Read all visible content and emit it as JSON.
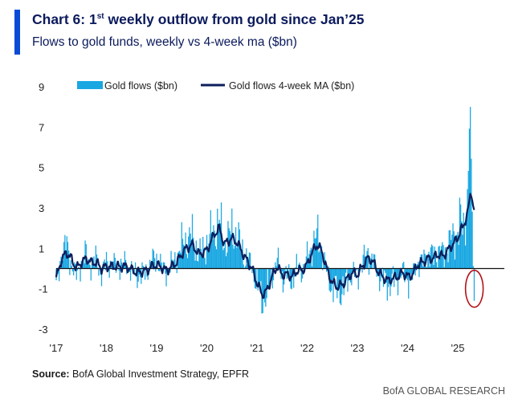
{
  "header": {
    "title_main": "Chart 6: 1",
    "title_sup": "st",
    "title_rest": " weekly outflow from gold since Jan’25",
    "subtitle": "Flows to gold funds, weekly vs 4-week ma ($bn)"
  },
  "footer": {
    "source_label": "Source:",
    "source_text": " BofA Global Investment Strategy, EPFR",
    "brand": "BofA GLOBAL RESEARCH"
  },
  "colors": {
    "bars": "#1aa7e2",
    "ma_line": "#0b1f5c",
    "zero_line": "#111111",
    "highlight": "#b3141a",
    "accent": "#0a4bd6"
  },
  "chart_data": {
    "type": "bar",
    "title": "Chart 6: 1st weekly outflow from gold since Jan’25",
    "subtitle": "Flows to gold funds, weekly vs 4-week ma ($bn)",
    "ylim": [
      -3,
      9
    ],
    "yticks": [
      -3,
      -1,
      1,
      3,
      5,
      7,
      9
    ],
    "xticks": [
      "'17",
      "'18",
      "'19",
      "'20",
      "'21",
      "'22",
      "'23",
      "'24",
      "'25"
    ],
    "xtick_positions_year": [
      2017,
      2018,
      2019,
      2020,
      2021,
      2022,
      2023,
      2024,
      2025
    ],
    "x_start_year": 2017.0,
    "x_end_year": 2025.32,
    "legend": [
      "Gold flows ($bn)",
      "Gold flows 4-week MA ($bn)"
    ],
    "legend_position": "top",
    "annotation": "red ellipse highlighting latest weekly outflow",
    "series": [
      {
        "name": "Gold flows ($bn)",
        "kind": "bar",
        "anchors": [
          [
            2017.0,
            -1.8
          ],
          [
            2017.1,
            1.0
          ],
          [
            2017.2,
            1.5
          ],
          [
            2017.3,
            0.4
          ],
          [
            2017.4,
            -0.6
          ],
          [
            2017.5,
            0.5
          ],
          [
            2017.6,
            0.9
          ],
          [
            2017.7,
            0.2
          ],
          [
            2017.8,
            0.6
          ],
          [
            2017.9,
            -0.4
          ],
          [
            2018.0,
            0.4
          ],
          [
            2018.2,
            0.2
          ],
          [
            2018.4,
            0.3
          ],
          [
            2018.6,
            -0.5
          ],
          [
            2018.8,
            -0.3
          ],
          [
            2018.9,
            0.5
          ],
          [
            2019.0,
            0.6
          ],
          [
            2019.2,
            -0.3
          ],
          [
            2019.4,
            0.8
          ],
          [
            2019.55,
            1.8
          ],
          [
            2019.7,
            2.1
          ],
          [
            2019.85,
            0.9
          ],
          [
            2020.0,
            1.6
          ],
          [
            2020.15,
            2.6
          ],
          [
            2020.25,
            3.0
          ],
          [
            2020.35,
            1.6
          ],
          [
            2020.5,
            2.4
          ],
          [
            2020.6,
            2.2
          ],
          [
            2020.75,
            0.8
          ],
          [
            2020.9,
            0.2
          ],
          [
            2021.0,
            -1.2
          ],
          [
            2021.1,
            -2.0
          ],
          [
            2021.2,
            -1.8
          ],
          [
            2021.3,
            -0.5
          ],
          [
            2021.4,
            0.6
          ],
          [
            2021.5,
            -0.6
          ],
          [
            2021.6,
            -0.5
          ],
          [
            2021.7,
            -0.8
          ],
          [
            2021.8,
            0.2
          ],
          [
            2021.9,
            -0.2
          ],
          [
            2022.0,
            0.6
          ],
          [
            2022.1,
            1.6
          ],
          [
            2022.2,
            2.1
          ],
          [
            2022.3,
            1.2
          ],
          [
            2022.4,
            -0.4
          ],
          [
            2022.5,
            -1.2
          ],
          [
            2022.6,
            -1.5
          ],
          [
            2022.7,
            -1.4
          ],
          [
            2022.8,
            -0.8
          ],
          [
            2022.9,
            -0.3
          ],
          [
            2023.0,
            -0.6
          ],
          [
            2023.1,
            0.4
          ],
          [
            2023.2,
            1.0
          ],
          [
            2023.3,
            0.6
          ],
          [
            2023.4,
            -0.3
          ],
          [
            2023.5,
            -0.7
          ],
          [
            2023.6,
            -1.1
          ],
          [
            2023.7,
            -0.9
          ],
          [
            2023.8,
            -0.6
          ],
          [
            2023.9,
            -0.3
          ],
          [
            2024.0,
            -0.7
          ],
          [
            2024.1,
            -0.6
          ],
          [
            2024.2,
            0.5
          ],
          [
            2024.3,
            0.4
          ],
          [
            2024.4,
            1.0
          ],
          [
            2024.5,
            0.8
          ],
          [
            2024.6,
            1.2
          ],
          [
            2024.7,
            0.9
          ],
          [
            2024.8,
            1.6
          ],
          [
            2024.9,
            2.0
          ],
          [
            2025.0,
            2.6
          ],
          [
            2025.05,
            3.2
          ],
          [
            2025.1,
            2.5
          ],
          [
            2025.15,
            3.6
          ],
          [
            2025.2,
            5.2
          ],
          [
            2025.25,
            8.0
          ],
          [
            2025.28,
            4.0
          ],
          [
            2025.32,
            -1.6
          ]
        ]
      },
      {
        "name": "Gold flows 4-week MA ($bn)",
        "kind": "line",
        "anchors": [
          [
            2017.0,
            -0.5
          ],
          [
            2017.1,
            0.4
          ],
          [
            2017.2,
            0.8
          ],
          [
            2017.3,
            0.5
          ],
          [
            2017.4,
            0.0
          ],
          [
            2017.5,
            0.3
          ],
          [
            2017.6,
            0.5
          ],
          [
            2017.7,
            0.3
          ],
          [
            2017.8,
            0.3
          ],
          [
            2017.9,
            0.0
          ],
          [
            2018.0,
            0.1
          ],
          [
            2018.2,
            0.1
          ],
          [
            2018.4,
            0.1
          ],
          [
            2018.6,
            -0.2
          ],
          [
            2018.8,
            -0.1
          ],
          [
            2018.9,
            0.1
          ],
          [
            2019.0,
            0.2
          ],
          [
            2019.2,
            -0.1
          ],
          [
            2019.4,
            0.3
          ],
          [
            2019.55,
            0.9
          ],
          [
            2019.7,
            1.2
          ],
          [
            2019.85,
            0.7
          ],
          [
            2020.0,
            0.9
          ],
          [
            2020.15,
            1.7
          ],
          [
            2020.25,
            2.0
          ],
          [
            2020.35,
            1.2
          ],
          [
            2020.5,
            1.5
          ],
          [
            2020.6,
            1.3
          ],
          [
            2020.75,
            0.6
          ],
          [
            2020.9,
            0.0
          ],
          [
            2021.0,
            -0.7
          ],
          [
            2021.1,
            -1.3
          ],
          [
            2021.2,
            -1.1
          ],
          [
            2021.3,
            -0.4
          ],
          [
            2021.4,
            0.1
          ],
          [
            2021.5,
            -0.3
          ],
          [
            2021.6,
            -0.3
          ],
          [
            2021.7,
            -0.4
          ],
          [
            2021.8,
            -0.1
          ],
          [
            2021.9,
            -0.1
          ],
          [
            2022.0,
            0.2
          ],
          [
            2022.1,
            0.8
          ],
          [
            2022.2,
            1.2
          ],
          [
            2022.3,
            0.8
          ],
          [
            2022.4,
            -0.1
          ],
          [
            2022.5,
            -0.7
          ],
          [
            2022.6,
            -0.9
          ],
          [
            2022.7,
            -0.8
          ],
          [
            2022.8,
            -0.5
          ],
          [
            2022.9,
            -0.2
          ],
          [
            2023.0,
            -0.3
          ],
          [
            2023.1,
            0.1
          ],
          [
            2023.2,
            0.5
          ],
          [
            2023.3,
            0.4
          ],
          [
            2023.4,
            -0.1
          ],
          [
            2023.5,
            -0.4
          ],
          [
            2023.6,
            -0.6
          ],
          [
            2023.7,
            -0.5
          ],
          [
            2023.8,
            -0.4
          ],
          [
            2023.9,
            -0.2
          ],
          [
            2024.0,
            -0.4
          ],
          [
            2024.1,
            -0.3
          ],
          [
            2024.2,
            0.2
          ],
          [
            2024.3,
            0.3
          ],
          [
            2024.4,
            0.5
          ],
          [
            2024.5,
            0.5
          ],
          [
            2024.6,
            0.7
          ],
          [
            2024.7,
            0.6
          ],
          [
            2024.8,
            0.9
          ],
          [
            2024.9,
            1.2
          ],
          [
            2025.0,
            1.5
          ],
          [
            2025.05,
            1.9
          ],
          [
            2025.1,
            2.0
          ],
          [
            2025.15,
            2.4
          ],
          [
            2025.2,
            2.8
          ],
          [
            2025.25,
            3.7
          ],
          [
            2025.28,
            3.5
          ],
          [
            2025.32,
            2.9
          ]
        ]
      }
    ]
  }
}
